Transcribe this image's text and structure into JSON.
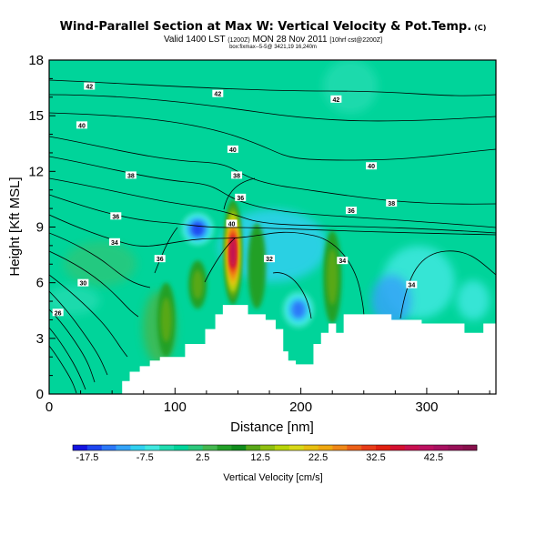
{
  "header": {
    "title": "Wind-Parallel Section at Max W: Vertical Velocity & Pot.Temp.",
    "title_tag": "(C)",
    "subtitle_main": "Valid 1400 LST",
    "subtitle_init": "(1200Z)",
    "subtitle_date": "MON 28 Nov 2011",
    "subtitle_fcst": "[10hrf cst@2200Z]",
    "subtitle2": "box:fixmax--5-5@ 3421,19 16,240m"
  },
  "chart_data": {
    "type": "heatmap",
    "xlabel": "Distance [nm]",
    "ylabel": "Height [Kft MSL]",
    "xlim": [
      0,
      355
    ],
    "ylim": [
      0,
      18
    ],
    "x_ticks": [
      "0",
      "100",
      "200",
      "300"
    ],
    "y_ticks": [
      "0",
      "3",
      "6",
      "9",
      "12",
      "15",
      "18"
    ],
    "grid": false,
    "colorbar": {
      "label": "Vertical Velocity [cm/s]",
      "tick_labels": [
        "-17.5",
        "-7.5",
        "2.5",
        "12.5",
        "22.5",
        "32.5",
        "42.5"
      ],
      "min": -20,
      "max": 50,
      "step": 2.5,
      "colors": [
        "#1414e0",
        "#1e46f0",
        "#2c78f8",
        "#34a4f8",
        "#30d0f0",
        "#40e8e0",
        "#20dcb0",
        "#00d49a",
        "#2cc87c",
        "#44b850",
        "#22a028",
        "#108c1c",
        "#58a818",
        "#90c010",
        "#b8d408",
        "#d8d818",
        "#e8c010",
        "#f0a810",
        "#f08818",
        "#ec6018",
        "#e83c18",
        "#e02010",
        "#d41030",
        "#c81050",
        "#bc1060",
        "#a81060",
        "#981058",
        "#88104c"
      ]
    },
    "updraft_cells": [
      {
        "x": 146,
        "z_bottom": 4.8,
        "z_top": 10.5,
        "peak_w": 42.5
      },
      {
        "x": 118,
        "z_bottom": 4.6,
        "z_top": 7.2,
        "peak_w": 12
      },
      {
        "x": 93,
        "z_bottom": 2.0,
        "z_top": 6.0,
        "peak_w": 13
      },
      {
        "x": 225,
        "z_bottom": 3.8,
        "z_top": 8.8,
        "peak_w": 13
      },
      {
        "x": 165,
        "z_bottom": 4.6,
        "z_top": 9.2,
        "peak_w": 9
      }
    ],
    "downdraft_cells": [
      {
        "x": 118,
        "z_bottom": 7.8,
        "z_top": 10.0,
        "peak_w": -17.5
      },
      {
        "x": 198,
        "z_bottom": 3.3,
        "z_top": 5.8,
        "peak_w": -15
      },
      {
        "x": 150,
        "z_bottom": 13.5,
        "z_top": 16.0,
        "peak_w": -3
      }
    ],
    "contour_labels": [
      {
        "x": 32,
        "z": 16.6,
        "value": "42"
      },
      {
        "x": 134,
        "z": 16.2,
        "value": "42"
      },
      {
        "x": 228,
        "z": 15.9,
        "value": "42"
      },
      {
        "x": 26,
        "z": 14.5,
        "value": "40"
      },
      {
        "x": 146,
        "z": 13.2,
        "value": "40"
      },
      {
        "x": 256,
        "z": 12.3,
        "value": "40"
      },
      {
        "x": 65,
        "z": 11.8,
        "value": "38"
      },
      {
        "x": 149,
        "z": 11.8,
        "value": "38"
      },
      {
        "x": 272,
        "z": 10.3,
        "value": "38"
      },
      {
        "x": 53,
        "z": 9.6,
        "value": "36"
      },
      {
        "x": 152,
        "z": 10.6,
        "value": "36"
      },
      {
        "x": 240,
        "z": 9.9,
        "value": "36"
      },
      {
        "x": 52,
        "z": 8.2,
        "value": "34"
      },
      {
        "x": 233,
        "z": 7.2,
        "value": "34"
      },
      {
        "x": 288,
        "z": 5.9,
        "value": "34"
      },
      {
        "x": 27,
        "z": 6.0,
        "value": "30"
      },
      {
        "x": 175,
        "z": 7.3,
        "value": "32"
      },
      {
        "x": 88,
        "z": 7.3,
        "value": "36"
      },
      {
        "x": 7,
        "z": 4.4,
        "value": "26"
      },
      {
        "x": 145,
        "z": 9.2,
        "value": "40"
      }
    ],
    "terrain": [
      [
        0,
        0
      ],
      [
        58,
        0
      ],
      [
        58,
        0.7
      ],
      [
        64,
        0.7
      ],
      [
        64,
        1.2
      ],
      [
        72,
        1.2
      ],
      [
        72,
        1.5
      ],
      [
        80,
        1.5
      ],
      [
        80,
        1.8
      ],
      [
        88,
        1.8
      ],
      [
        88,
        2.0
      ],
      [
        108,
        2.0
      ],
      [
        108,
        2.7
      ],
      [
        124,
        2.7
      ],
      [
        124,
        3.5
      ],
      [
        132,
        3.5
      ],
      [
        132,
        4.3
      ],
      [
        138,
        4.3
      ],
      [
        138,
        4.8
      ],
      [
        158,
        4.8
      ],
      [
        158,
        4.3
      ],
      [
        172,
        4.3
      ],
      [
        172,
        4.0
      ],
      [
        180,
        4.0
      ],
      [
        180,
        3.5
      ],
      [
        186,
        3.5
      ],
      [
        186,
        2.3
      ],
      [
        190,
        2.3
      ],
      [
        190,
        1.8
      ],
      [
        196,
        1.8
      ],
      [
        196,
        1.6
      ],
      [
        210,
        1.6
      ],
      [
        210,
        2.7
      ],
      [
        216,
        2.7
      ],
      [
        216,
        3.3
      ],
      [
        222,
        3.3
      ],
      [
        222,
        3.8
      ],
      [
        228,
        3.8
      ],
      [
        228,
        3.3
      ],
      [
        234,
        3.3
      ],
      [
        234,
        4.3
      ],
      [
        272,
        4.3
      ],
      [
        272,
        4.0
      ],
      [
        296,
        4.0
      ],
      [
        296,
        3.8
      ],
      [
        330,
        3.8
      ],
      [
        330,
        3.3
      ],
      [
        345,
        3.3
      ],
      [
        345,
        3.8
      ],
      [
        355,
        3.8
      ],
      [
        355,
        0
      ]
    ]
  }
}
